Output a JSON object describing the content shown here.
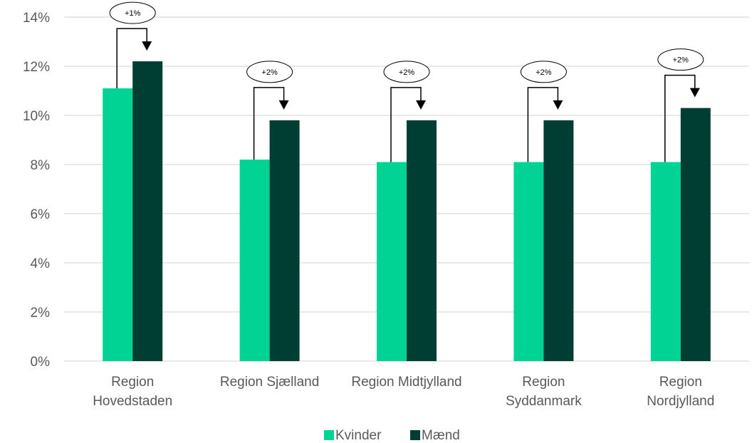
{
  "chart_data": {
    "type": "bar",
    "categories": [
      [
        "Region",
        "Hovedstaden"
      ],
      [
        "Region Sjælland"
      ],
      [
        "Region Midtjylland"
      ],
      [
        "Region",
        "Syddanmark"
      ],
      [
        "Region",
        "Nordjylland"
      ]
    ],
    "series": [
      {
        "name": "Kvinder",
        "color": "#00d394",
        "values": [
          11.1,
          8.2,
          8.1,
          8.1,
          8.1
        ]
      },
      {
        "name": "Mænd",
        "color": "#003d33",
        "values": [
          12.2,
          9.8,
          9.8,
          9.8,
          10.3
        ]
      }
    ],
    "annotations": [
      "+1%",
      "+2%",
      "+2%",
      "+2%",
      "+2%"
    ],
    "y_ticks": [
      "0%",
      "2%",
      "4%",
      "6%",
      "8%",
      "10%",
      "12%",
      "14%"
    ],
    "ylim": [
      0,
      14
    ],
    "y_unit": "%",
    "grid": true,
    "legend_position": "bottom",
    "gridline_color": "#d9d9d9"
  }
}
